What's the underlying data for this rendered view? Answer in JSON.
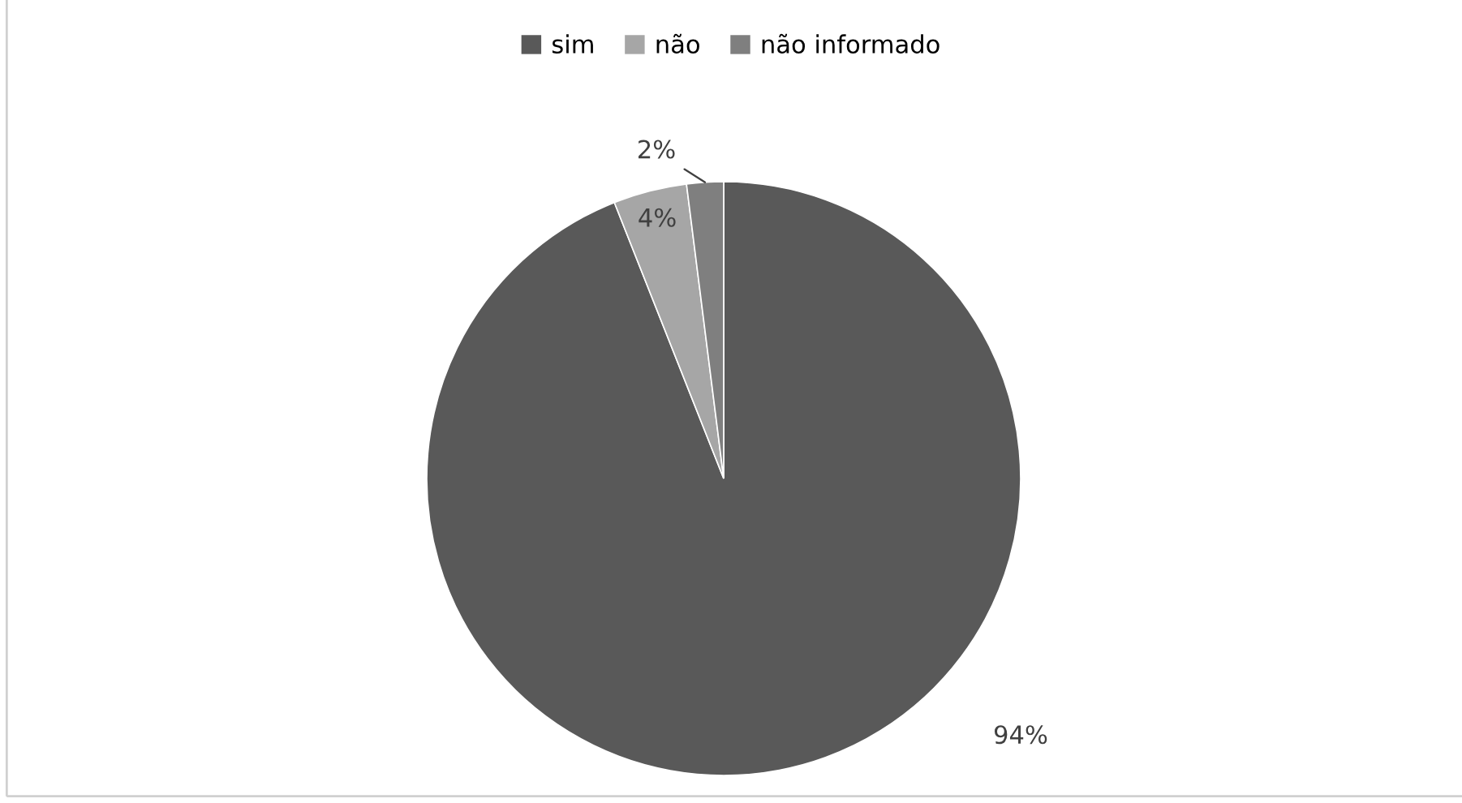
{
  "chart_data": {
    "type": "pie",
    "categories": [
      "sim",
      "não",
      "não informado"
    ],
    "values": [
      94,
      4,
      2
    ],
    "colors": [
      "#595959",
      "#a6a6a6",
      "#7f7f7f"
    ],
    "value_labels": [
      "94%",
      "4%",
      "2%"
    ],
    "legend": "top"
  }
}
